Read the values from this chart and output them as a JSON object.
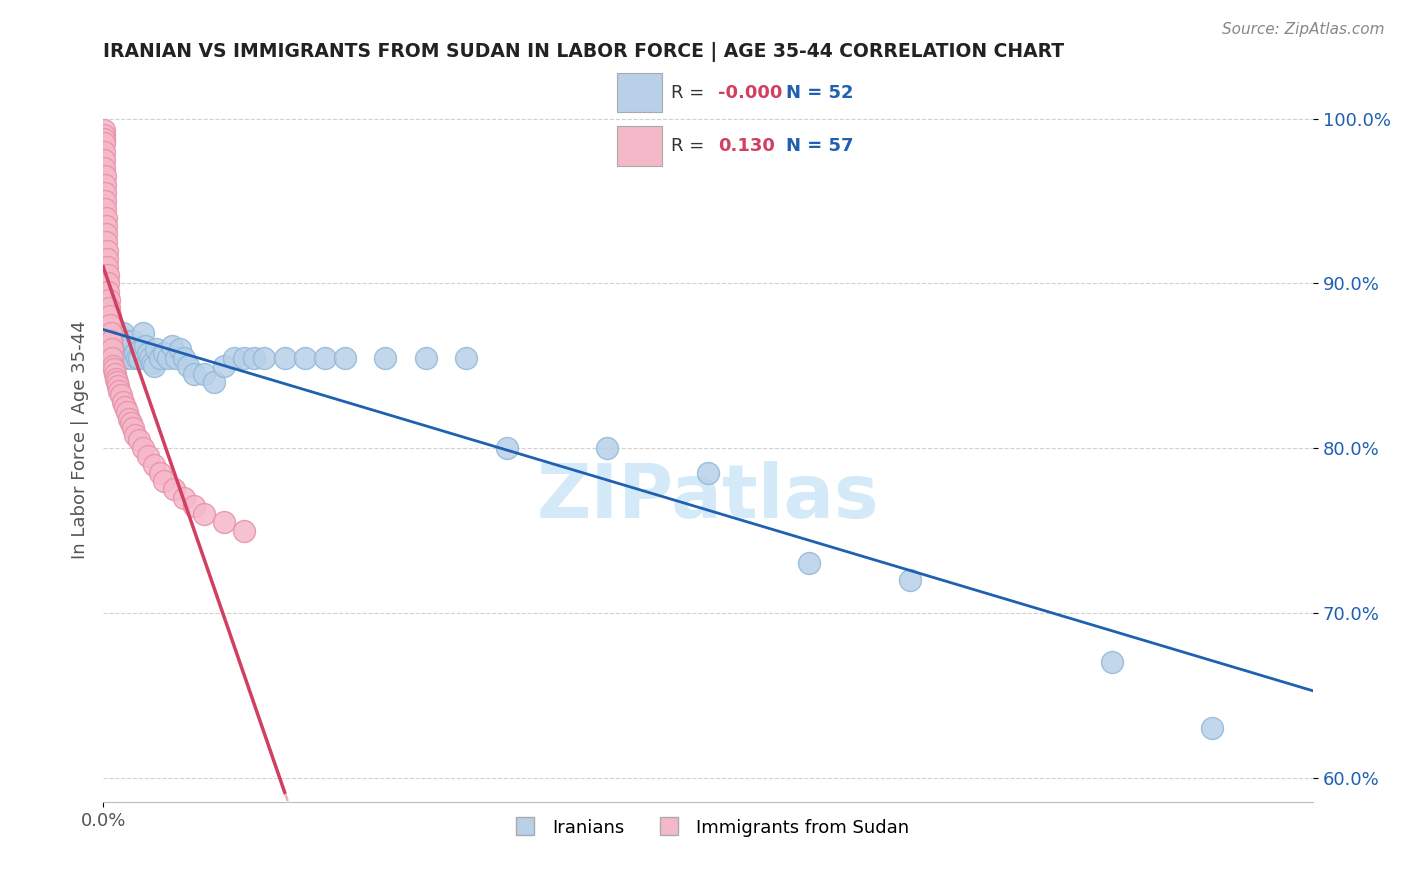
{
  "title": "IRANIAN VS IMMIGRANTS FROM SUDAN IN LABOR FORCE | AGE 35-44 CORRELATION CHART",
  "source": "Source: ZipAtlas.com",
  "ylabel": "In Labor Force | Age 35-44",
  "xlim": [
    0.0,
    0.006
  ],
  "ylim": [
    0.585,
    1.025
  ],
  "yticks": [
    0.6,
    0.7,
    0.8,
    0.9,
    1.0
  ],
  "ytick_labels": [
    "60.0%",
    "70.0%",
    "80.0%",
    "90.0%",
    "100.0%"
  ],
  "xticks": [
    0.0,
    0.001,
    0.002,
    0.003,
    0.004,
    0.005
  ],
  "xtick_labels": [
    "0.0%",
    "",
    "",
    "",
    "",
    ""
  ],
  "legend_r_blue": "-0.000",
  "legend_n_blue": "52",
  "legend_r_pink": "0.130",
  "legend_n_pink": "57",
  "blue_fill_color": "#b8d0e8",
  "pink_fill_color": "#f5b8c8",
  "blue_edge_color": "#90b8d8",
  "pink_edge_color": "#e890a8",
  "blue_line_color": "#2060b0",
  "pink_line_color": "#d04060",
  "pink_dash_color": "#e090a8",
  "watermark_color": "#d0e8f8",
  "background_color": "#ffffff",
  "grid_color": "#cccccc",
  "blue_scatter_x": [
    5e-05,
    6e-05,
    7e-05,
    8e-05,
    9e-05,
    0.0001,
    0.00011,
    0.00012,
    0.00013,
    0.00014,
    0.00015,
    0.00016,
    0.00017,
    0.00018,
    0.00019,
    0.0002,
    0.00021,
    0.00022,
    0.00023,
    0.00024,
    0.00025,
    0.00026,
    0.00028,
    0.0003,
    0.00032,
    0.00034,
    0.00036,
    0.00038,
    0.0004,
    0.00042,
    0.00045,
    0.0005,
    0.00055,
    0.0006,
    0.00065,
    0.0007,
    0.00075,
    0.0008,
    0.0009,
    0.001,
    0.0011,
    0.0012,
    0.0014,
    0.0016,
    0.0018,
    0.002,
    0.0025,
    0.003,
    0.0035,
    0.004,
    0.005,
    0.0055
  ],
  "blue_scatter_y": [
    0.855,
    0.86,
    0.862,
    0.858,
    0.865,
    0.87,
    0.855,
    0.865,
    0.86,
    0.855,
    0.865,
    0.858,
    0.855,
    0.855,
    0.86,
    0.87,
    0.862,
    0.858,
    0.855,
    0.852,
    0.85,
    0.86,
    0.855,
    0.858,
    0.855,
    0.862,
    0.855,
    0.86,
    0.855,
    0.85,
    0.845,
    0.845,
    0.84,
    0.85,
    0.855,
    0.855,
    0.855,
    0.855,
    0.855,
    0.855,
    0.855,
    0.855,
    0.855,
    0.855,
    0.855,
    0.8,
    0.8,
    0.785,
    0.73,
    0.72,
    0.67,
    0.63
  ],
  "pink_scatter_x": [
    5e-06,
    5e-06,
    5e-06,
    5e-06,
    5e-06,
    5e-06,
    5e-06,
    8e-06,
    8e-06,
    1e-05,
    1e-05,
    1e-05,
    1.2e-05,
    1.2e-05,
    1.5e-05,
    1.5e-05,
    1.8e-05,
    1.8e-05,
    2e-05,
    2.2e-05,
    2.5e-05,
    2.5e-05,
    2.8e-05,
    3e-05,
    3.2e-05,
    3.5e-05,
    3.8e-05,
    4e-05,
    4.2e-05,
    4.5e-05,
    5e-05,
    5.5e-05,
    6e-05,
    6.5e-05,
    7e-05,
    7.5e-05,
    8e-05,
    9e-05,
    0.0001,
    0.00011,
    0.00012,
    0.00013,
    0.00014,
    0.00015,
    0.00016,
    0.00018,
    0.0002,
    0.00022,
    0.00025,
    0.00028,
    0.0003,
    0.00035,
    0.0004,
    0.00045,
    0.0005,
    0.0006,
    0.0007
  ],
  "pink_scatter_y": [
    0.993,
    0.99,
    0.988,
    0.985,
    0.98,
    0.975,
    0.97,
    0.965,
    0.96,
    0.955,
    0.95,
    0.945,
    0.94,
    0.935,
    0.93,
    0.925,
    0.92,
    0.915,
    0.91,
    0.905,
    0.9,
    0.895,
    0.89,
    0.885,
    0.88,
    0.875,
    0.87,
    0.865,
    0.86,
    0.855,
    0.85,
    0.848,
    0.845,
    0.842,
    0.84,
    0.838,
    0.835,
    0.832,
    0.828,
    0.825,
    0.822,
    0.818,
    0.815,
    0.812,
    0.808,
    0.805,
    0.8,
    0.795,
    0.79,
    0.785,
    0.78,
    0.775,
    0.77,
    0.765,
    0.76,
    0.755,
    0.75
  ]
}
